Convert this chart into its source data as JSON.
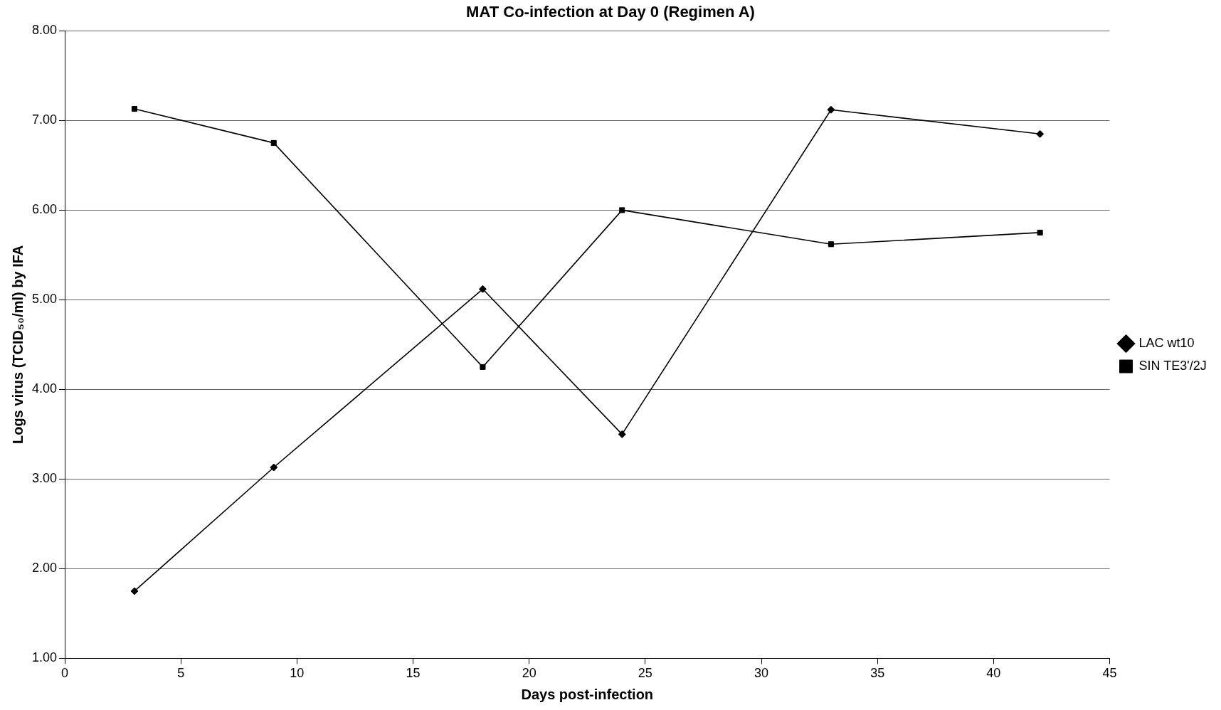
{
  "chart_data": {
    "type": "line",
    "title": "MAT Co-infection at Day 0 (Regimen A)",
    "xlabel": "Days post-infection",
    "ylabel": "Logs virus (TCID₅₀/ml) by IFA",
    "x": [
      3,
      9,
      18,
      24,
      33,
      42
    ],
    "series": [
      {
        "name": "LAC wt10",
        "color": "#000000",
        "marker": "diamond",
        "values": [
          1.75,
          3.13,
          5.12,
          3.5,
          7.12,
          6.85
        ]
      },
      {
        "name": "SIN TE3'/2J",
        "color": "#000000",
        "marker": "square",
        "values": [
          7.13,
          6.75,
          4.25,
          6.0,
          5.62,
          5.75
        ]
      }
    ],
    "xlim": [
      0,
      45
    ],
    "xticks": [
      0,
      5,
      10,
      15,
      20,
      25,
      30,
      35,
      40,
      45
    ],
    "ylim": [
      1,
      8
    ],
    "yticks": [
      {
        "value": 1,
        "label": "1.00"
      },
      {
        "value": 2,
        "label": "2.00"
      },
      {
        "value": 3,
        "label": "3.00"
      },
      {
        "value": 4,
        "label": "4.00"
      },
      {
        "value": 5,
        "label": "5.00"
      },
      {
        "value": 6,
        "label": "6.00"
      },
      {
        "value": 7,
        "label": "7.00"
      },
      {
        "value": 8,
        "label": "8.00"
      }
    ],
    "grid": "y",
    "legend": "right",
    "line_style": "solid"
  }
}
